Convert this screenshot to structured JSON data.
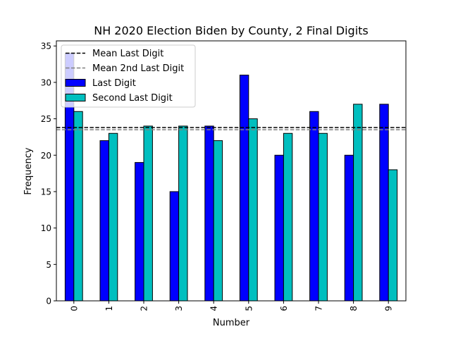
{
  "chart_data": {
    "type": "bar",
    "title": "NH 2020 Election Biden by County, 2 Final Digits",
    "xlabel": "Number",
    "ylabel": "Frequency",
    "categories": [
      "0",
      "1",
      "2",
      "3",
      "4",
      "5",
      "6",
      "7",
      "8",
      "9"
    ],
    "series": [
      {
        "name": "Last Digit",
        "color": "#0000ff",
        "values": [
          34,
          22,
          19,
          15,
          24,
          31,
          20,
          26,
          20,
          27
        ]
      },
      {
        "name": "Second Last Digit",
        "color": "#00bfbf",
        "values": [
          26,
          23,
          24,
          24,
          22,
          25,
          23,
          23,
          27,
          18
        ]
      }
    ],
    "reference_lines": [
      {
        "name": "Mean Last Digit",
        "value": 23.8,
        "color": "#000000",
        "style": "dashed"
      },
      {
        "name": "Mean 2nd Last Digit",
        "value": 23.5,
        "color": "#808080",
        "style": "dashed"
      }
    ],
    "ylim": [
      0,
      35.7
    ],
    "yticks": [
      0,
      5,
      10,
      15,
      20,
      25,
      30,
      35
    ],
    "tick_label_rotation_x": 90,
    "legend": "top-left",
    "grid": false
  }
}
